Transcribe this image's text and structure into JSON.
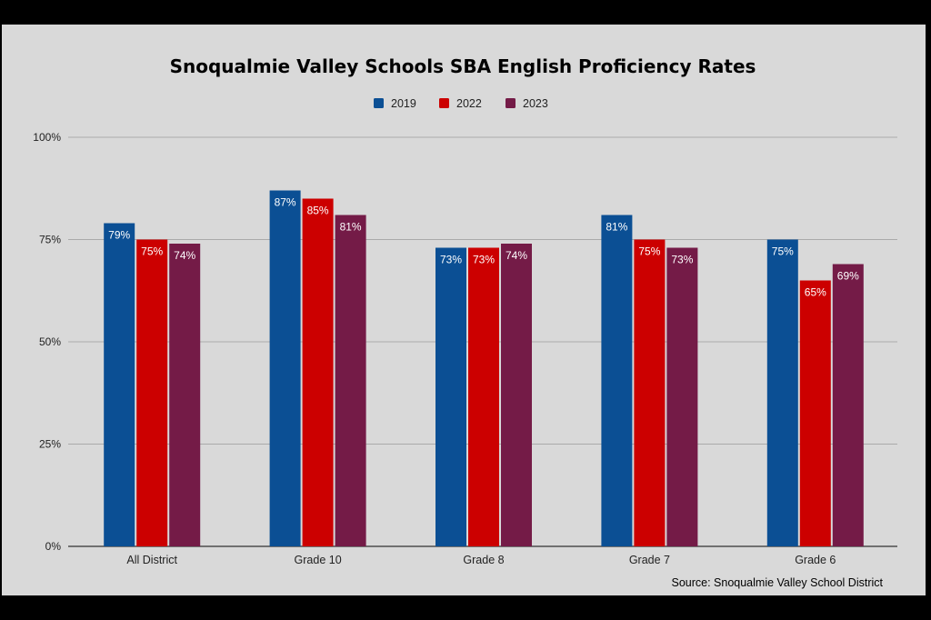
{
  "chart_data": {
    "type": "bar",
    "title": "Snoqualmie Valley Schools SBA English Proficiency Rates",
    "source": "Source: Snoqualmie Valley School District",
    "categories": [
      "All District",
      "Grade 10",
      "Grade 8",
      "Grade 7",
      "Grade 6"
    ],
    "series": [
      {
        "name": "2019",
        "color": "#0b4f94",
        "values": [
          79,
          87,
          73,
          81,
          75
        ]
      },
      {
        "name": "2022",
        "color": "#cc0000",
        "values": [
          75,
          85,
          73,
          75,
          65
        ]
      },
      {
        "name": "2023",
        "color": "#741b47",
        "values": [
          74,
          81,
          74,
          73,
          69
        ]
      }
    ],
    "ylim": [
      0,
      100
    ],
    "yticks": [
      0,
      25,
      50,
      75,
      100
    ],
    "ytick_labels": [
      "0%",
      "25%",
      "50%",
      "75%",
      "100%"
    ],
    "data_label_suffix": "%",
    "grid": true,
    "legend_position": "top",
    "background": "#d9d9d9"
  }
}
